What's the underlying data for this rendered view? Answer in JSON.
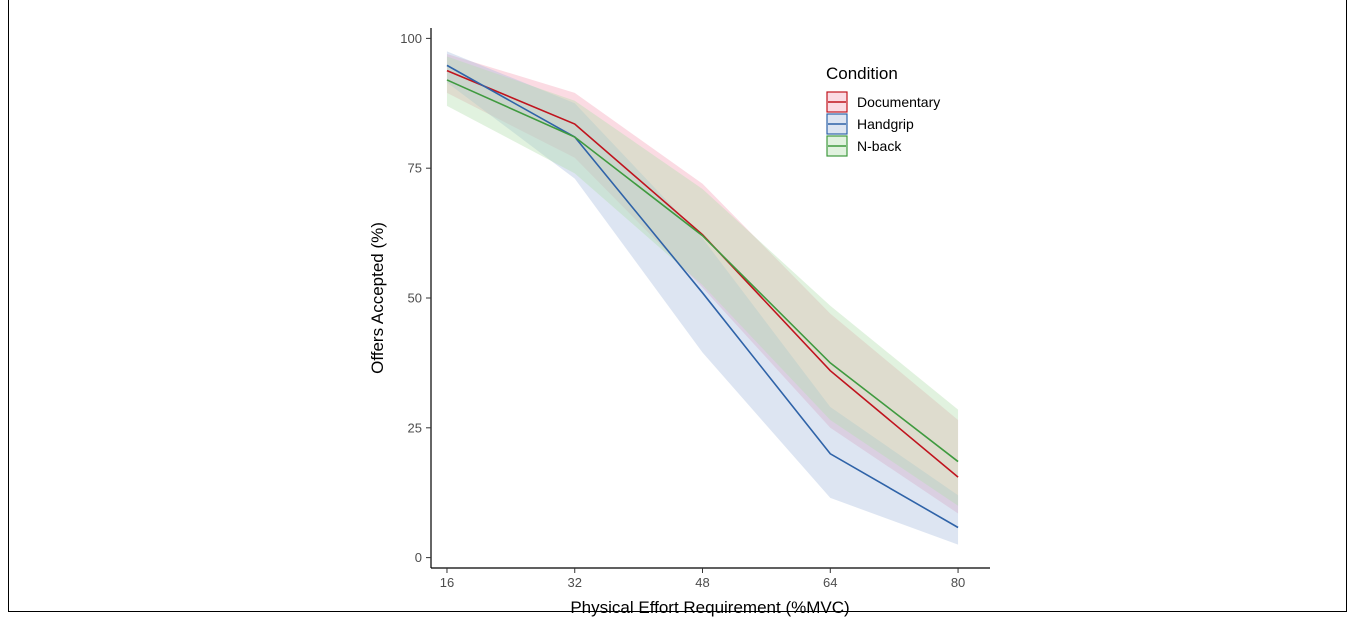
{
  "chart_data": {
    "type": "line",
    "title": "",
    "xlabel": "Physical Effort Requirement (%MVC)",
    "ylabel": "Offers Accepted (%)",
    "x": [
      16,
      32,
      48,
      64,
      80
    ],
    "xlim": [
      14,
      84
    ],
    "ylim": [
      -2,
      102
    ],
    "xticks": [
      "16",
      "32",
      "48",
      "64",
      "80"
    ],
    "yticks": [
      "0",
      "25",
      "50",
      "75",
      "100"
    ],
    "grid": false,
    "legend": {
      "title": "Condition",
      "placement": "top-right"
    },
    "series": [
      {
        "name": "Documentary",
        "color": "#c0141e",
        "fill": "#f4a6b8",
        "values": [
          93.8,
          83.5,
          62.2,
          36.0,
          15.5
        ],
        "lower": [
          89.5,
          77.0,
          52.0,
          25.0,
          8.5
        ],
        "upper": [
          97.0,
          89.5,
          72.0,
          47.0,
          26.5
        ]
      },
      {
        "name": "Handgrip",
        "color": "#2f63a8",
        "fill": "#a9bddf",
        "values": [
          94.8,
          81.0,
          51.0,
          20.0,
          5.8
        ],
        "lower": [
          91.5,
          73.0,
          39.5,
          11.5,
          2.5
        ],
        "upper": [
          97.5,
          87.5,
          61.5,
          29.0,
          12.0
        ]
      },
      {
        "name": "N-back",
        "color": "#3f9a3f",
        "fill": "#b4dfae",
        "values": [
          92.0,
          81.0,
          62.0,
          37.5,
          18.5
        ],
        "lower": [
          87.0,
          74.0,
          52.5,
          26.5,
          10.0
        ],
        "upper": [
          96.5,
          88.0,
          71.0,
          48.5,
          28.5
        ]
      }
    ]
  }
}
